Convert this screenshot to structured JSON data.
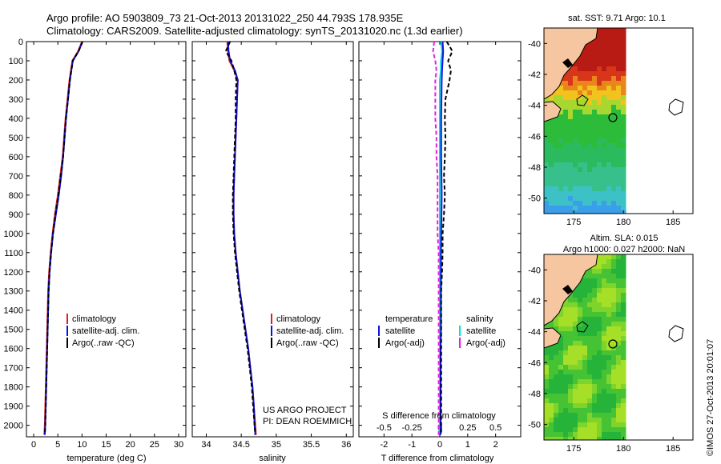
{
  "header": {
    "title_line1": "Argo profile: AO 5903809_73 21-Oct-2013 20131022_250 44.793S 178.935E",
    "title_line2": "Climatology: CARS2009. Satellite-adjusted climatology: synTS_20131020.nc (1.3d earlier)"
  },
  "colors": {
    "climatology": "#e02020",
    "satellite": "#1010e0",
    "argo": "#000000",
    "sal_sat": "#00e0e0",
    "sal_argo": "#e020e0"
  },
  "depth_ticks": [
    "0",
    "100",
    "200",
    "300",
    "400",
    "500",
    "600",
    "700",
    "800",
    "900",
    "1000",
    "1100",
    "1200",
    "1300",
    "1400",
    "1500",
    "1600",
    "1700",
    "1800",
    "1900",
    "2000"
  ],
  "chart_data": [
    {
      "type": "line",
      "name": "temperature",
      "xlabel": "temperature (deg C)",
      "ylabel": "depth",
      "xlim": [
        -1.5,
        31.5
      ],
      "ylim": [
        2060,
        0
      ],
      "xticks": [
        "0",
        "5",
        "10",
        "15",
        "20",
        "25",
        "30"
      ],
      "legend": [
        "climatology",
        "satellite-adj. clim.",
        "Argo(..raw -QC)"
      ],
      "depth": [
        0,
        50,
        100,
        150,
        200,
        300,
        400,
        500,
        600,
        700,
        800,
        900,
        1000,
        1100,
        1200,
        1300,
        1400,
        1500,
        1600,
        1700,
        1800,
        1900,
        2000,
        2050
      ],
      "series": [
        {
          "name": "climatology",
          "values": [
            10.0,
            9.2,
            8.0,
            7.7,
            7.4,
            7.0,
            6.6,
            6.3,
            6.0,
            5.5,
            5.0,
            4.4,
            3.9,
            3.5,
            3.2,
            3.0,
            2.9,
            2.8,
            2.7,
            2.6,
            2.5,
            2.4,
            2.3,
            2.2
          ]
        },
        {
          "name": "satellite-adj. clim.",
          "values": [
            10.1,
            9.3,
            8.1,
            7.8,
            7.5,
            7.1,
            6.7,
            6.4,
            6.1,
            5.7,
            5.2,
            4.6,
            4.0,
            3.6,
            3.3,
            3.1,
            3.0,
            2.9,
            2.8,
            2.7,
            2.6,
            2.5,
            2.4,
            2.3
          ]
        },
        {
          "name": "Argo(..raw -QC)",
          "values": [
            10.1,
            9.3,
            8.1,
            7.8,
            7.5,
            7.1,
            6.7,
            6.4,
            6.1,
            5.6,
            5.1,
            4.5,
            4.0,
            3.6,
            3.3,
            3.1,
            3.0,
            2.9,
            2.8,
            2.7,
            2.6,
            2.5,
            2.4,
            2.3
          ]
        }
      ]
    },
    {
      "type": "line",
      "name": "salinity",
      "xlabel": "salinity",
      "xlim": [
        33.8,
        36.1
      ],
      "ylim": [
        2060,
        0
      ],
      "xticks": [
        "34",
        "34.5",
        "35",
        "35.5",
        "36"
      ],
      "legend": [
        "climatology",
        "satellite-adj. clim.",
        "Argo(..raw -QC)"
      ],
      "annotation": [
        "US ARGO PROJECT",
        "PI: DEAN ROEMMICH"
      ],
      "depth": [
        0,
        50,
        100,
        150,
        200,
        300,
        400,
        500,
        600,
        700,
        800,
        900,
        1000,
        1100,
        1200,
        1300,
        1400,
        1500,
        1600,
        1700,
        1800,
        1900,
        2000,
        2050
      ],
      "series": [
        {
          "name": "climatology",
          "values": [
            34.3,
            34.31,
            34.33,
            34.4,
            34.45,
            34.44,
            34.43,
            34.42,
            34.41,
            34.4,
            34.39,
            34.39,
            34.4,
            34.42,
            34.45,
            34.48,
            34.52,
            34.56,
            34.6,
            34.63,
            34.66,
            34.68,
            34.7,
            34.71
          ]
        },
        {
          "name": "satellite-adj. clim.",
          "values": [
            34.31,
            34.32,
            34.34,
            34.41,
            34.45,
            34.44,
            34.43,
            34.42,
            34.41,
            34.4,
            34.39,
            34.39,
            34.4,
            34.42,
            34.45,
            34.48,
            34.52,
            34.56,
            34.6,
            34.63,
            34.66,
            34.68,
            34.69,
            34.7
          ]
        },
        {
          "name": "Argo(..raw -QC)",
          "values": [
            34.34,
            34.28,
            34.36,
            34.4,
            34.43,
            34.42,
            34.42,
            34.41,
            34.4,
            34.39,
            34.38,
            34.38,
            34.39,
            34.41,
            34.44,
            34.47,
            34.51,
            34.55,
            34.59,
            34.62,
            34.65,
            34.67,
            34.69,
            34.7
          ]
        }
      ]
    },
    {
      "type": "line",
      "name": "difference",
      "xlabel": "T difference from climatology",
      "xlabel2": "S difference from climatology",
      "xlim": [
        -2.9,
        2.9
      ],
      "ylim": [
        2060,
        0
      ],
      "xticks": [
        "-2",
        "-1",
        "0",
        "1",
        "2"
      ],
      "sticks": [
        "-0.5",
        "-0.25",
        "0",
        "0.25",
        "0.5"
      ],
      "legend_temperature": [
        "temperature",
        "satellite",
        "Argo(-adj)"
      ],
      "legend_salinity": [
        "salinity",
        "satellite",
        "Argo(-adj)"
      ],
      "depth": [
        0,
        50,
        100,
        150,
        200,
        300,
        400,
        500,
        600,
        700,
        800,
        900,
        1000,
        1100,
        1200,
        1300,
        1400,
        1500,
        1600,
        1700,
        1800,
        1900,
        2000,
        2050
      ],
      "series": [
        {
          "name": "T satellite",
          "values": [
            0.1,
            0.12,
            0.1,
            0.08,
            0.07,
            0.06,
            0.05,
            0.05,
            0.05,
            0.06,
            0.07,
            0.06,
            0.05,
            0.04,
            0.04,
            0.04,
            0.04,
            0.04,
            0.03,
            0.03,
            0.03,
            0.03,
            0.03,
            0.03
          ]
        },
        {
          "name": "T Argo(-adj)",
          "values": [
            0.25,
            0.45,
            0.3,
            0.4,
            0.35,
            0.2,
            0.18,
            0.2,
            0.18,
            0.15,
            0.18,
            0.15,
            0.1,
            0.1,
            0.08,
            0.05,
            0.05,
            0.05,
            0.05,
            0.05,
            0.05,
            0.05,
            0.05,
            0.05
          ]
        },
        {
          "name": "S satellite",
          "values": [
            0.01,
            0.02,
            0.01,
            0.01,
            0.0,
            0.0,
            0.0,
            0.0,
            0.0,
            0.0,
            0.0,
            0.0,
            0.0,
            0.0,
            0.0,
            0.0,
            0.0,
            0.0,
            0.0,
            0.0,
            0.0,
            0.0,
            0.0,
            -0.01
          ]
        },
        {
          "name": "S Argo(-adj)",
          "values": [
            -0.05,
            -0.06,
            -0.04,
            -0.03,
            -0.04,
            -0.04,
            -0.04,
            -0.03,
            -0.03,
            -0.02,
            -0.02,
            -0.02,
            -0.02,
            -0.01,
            -0.01,
            -0.01,
            -0.01,
            -0.01,
            -0.01,
            -0.01,
            -0.01,
            -0.01,
            -0.01,
            -0.01
          ]
        }
      ]
    },
    {
      "type": "heatmap",
      "name": "sst_map",
      "title": "sat. SST: 9.71  Argo: 10.1",
      "xticks": [
        "175",
        "180",
        "185"
      ],
      "yticks": [
        "-40",
        "-42",
        "-44",
        "-46",
        "-48",
        "-50"
      ],
      "xlim": [
        172,
        187
      ],
      "ylim": [
        -51,
        -39
      ],
      "argo_position": [
        178.935,
        -44.793
      ]
    },
    {
      "type": "heatmap",
      "name": "sla_map",
      "title": "Altim. SLA: 0.015",
      "title2": "Argo h1000: 0.027  h2000: NaN",
      "xticks": [
        "175",
        "180",
        "185"
      ],
      "yticks": [
        "-40",
        "-42",
        "-44",
        "-46",
        "-48",
        "-50"
      ],
      "xlim": [
        172,
        187
      ],
      "ylim": [
        -51,
        -39
      ],
      "argo_position": [
        178.935,
        -44.793
      ]
    }
  ],
  "side_label": "©IMOS 27-Oct-2013 20:01:07"
}
